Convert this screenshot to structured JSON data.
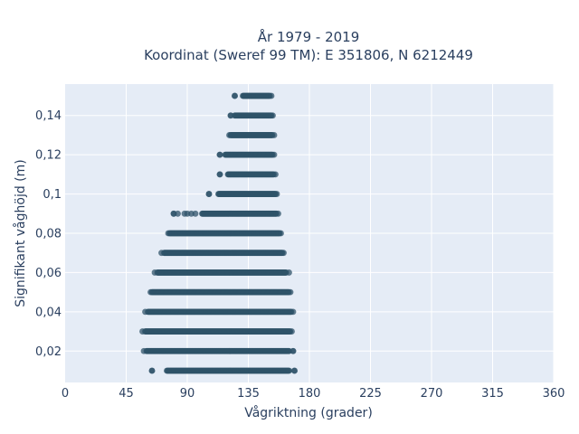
{
  "chart_data": {
    "type": "scatter",
    "title_line1": "År 1979 - 2019",
    "title_line2": "Koordinat (Sweref 99 TM): E 351806, N 6212449",
    "xlabel": "Vågriktning (grader)",
    "ylabel": "Signifikant våghöjd (m)",
    "xlim": [
      0,
      360
    ],
    "ylim": [
      0.004,
      0.156
    ],
    "x_ticks": [
      0,
      45,
      90,
      135,
      180,
      225,
      270,
      315,
      360
    ],
    "x_tick_labels": [
      "0",
      "45",
      "90",
      "135",
      "180",
      "225",
      "270",
      "315",
      "360"
    ],
    "y_ticks": [
      0.02,
      0.04,
      0.06,
      0.08,
      0.1,
      0.12,
      0.14
    ],
    "y_tick_labels": [
      "0,02",
      "0,04",
      "0,06",
      "0,08",
      "0,1",
      "0,12",
      "0,14"
    ],
    "grid": true,
    "bands": [
      {
        "y": 0.01,
        "x_min": 64,
        "x_max": 169,
        "dense_min": 75,
        "dense_max": 165,
        "outliers": [
          64,
          169
        ]
      },
      {
        "y": 0.02,
        "x_min": 58,
        "x_max": 168,
        "dense_min": 60,
        "dense_max": 165,
        "outliers": [
          168
        ]
      },
      {
        "y": 0.03,
        "x_min": 57,
        "x_max": 167,
        "dense_min": 59,
        "dense_max": 166,
        "outliers": []
      },
      {
        "y": 0.04,
        "x_min": 59,
        "x_max": 168,
        "dense_min": 61,
        "dense_max": 167,
        "outliers": []
      },
      {
        "y": 0.05,
        "x_min": 63,
        "x_max": 166,
        "dense_min": 64,
        "dense_max": 165,
        "outliers": []
      },
      {
        "y": 0.06,
        "x_min": 66,
        "x_max": 165,
        "dense_min": 68,
        "dense_max": 163,
        "outliers": []
      },
      {
        "y": 0.07,
        "x_min": 71,
        "x_max": 161,
        "dense_min": 73,
        "dense_max": 160,
        "outliers": []
      },
      {
        "y": 0.08,
        "x_min": 76,
        "x_max": 159,
        "dense_min": 77,
        "dense_max": 158,
        "outliers": []
      },
      {
        "y": 0.09,
        "x_min": 80,
        "x_max": 157,
        "dense_min": 101,
        "dense_max": 156,
        "outliers": [
          80,
          83,
          88,
          90,
          93,
          96
        ]
      },
      {
        "y": 0.1,
        "x_min": 106,
        "x_max": 156,
        "dense_min": 113,
        "dense_max": 155,
        "outliers": [
          106
        ]
      },
      {
        "y": 0.11,
        "x_min": 114,
        "x_max": 155,
        "dense_min": 120,
        "dense_max": 154,
        "outliers": [
          114
        ]
      },
      {
        "y": 0.12,
        "x_min": 114,
        "x_max": 154,
        "dense_min": 118,
        "dense_max": 153,
        "outliers": [
          114
        ]
      },
      {
        "y": 0.13,
        "x_min": 121,
        "x_max": 154,
        "dense_min": 122,
        "dense_max": 153,
        "outliers": []
      },
      {
        "y": 0.14,
        "x_min": 122,
        "x_max": 153,
        "dense_min": 125,
        "dense_max": 152,
        "outliers": [
          122
        ]
      },
      {
        "y": 0.15,
        "x_min": 125,
        "x_max": 152,
        "dense_min": 131,
        "dense_max": 151,
        "outliers": [
          125
        ]
      }
    ],
    "marker_color": "#2f5369",
    "plot_bg": "#e5ecf6",
    "grid_color": "#ffffff"
  }
}
